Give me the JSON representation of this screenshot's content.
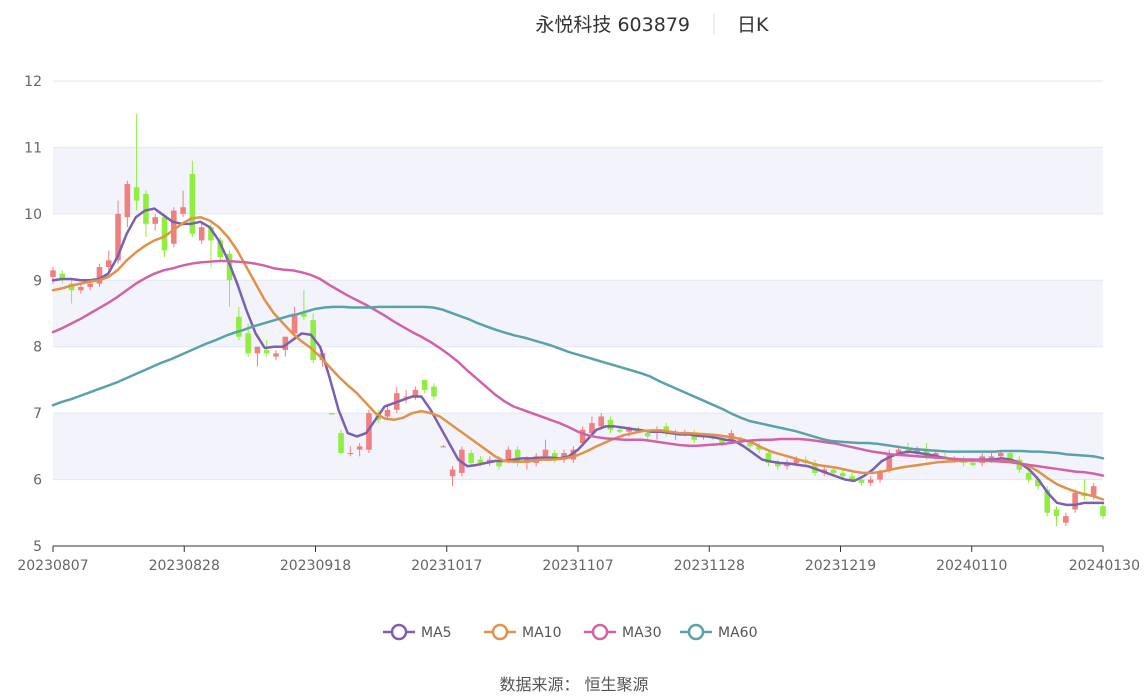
{
  "chart_data": {
    "type": "candlestick",
    "title": "永悦科技 603879",
    "subtitle": "日K",
    "source": "数据来源： 恒生聚源",
    "ylim": [
      5,
      12
    ],
    "yticks": [
      5,
      6,
      7,
      8,
      9,
      10,
      11,
      12
    ],
    "grid": true,
    "legend_position": "bottom",
    "xtick_labels": [
      "20230807",
      "20230828",
      "20230918",
      "20231017",
      "20231107",
      "20231128",
      "20231219",
      "20240110",
      "20240130"
    ],
    "up_color": "#f08080",
    "down_color": "#90ee40",
    "candles": [
      {
        "o": 9.05,
        "h": 9.2,
        "l": 8.95,
        "c": 9.15
      },
      {
        "o": 9.1,
        "h": 9.15,
        "l": 8.95,
        "c": 9.0
      },
      {
        "o": 8.95,
        "h": 9.0,
        "l": 8.65,
        "c": 8.85
      },
      {
        "o": 8.85,
        "h": 8.95,
        "l": 8.8,
        "c": 8.9
      },
      {
        "o": 8.9,
        "h": 9.0,
        "l": 8.85,
        "c": 8.95
      },
      {
        "o": 8.95,
        "h": 9.25,
        "l": 8.9,
        "c": 9.2
      },
      {
        "o": 9.2,
        "h": 9.45,
        "l": 9.15,
        "c": 9.3
      },
      {
        "o": 9.3,
        "h": 10.2,
        "l": 9.25,
        "c": 10.0
      },
      {
        "o": 9.95,
        "h": 10.5,
        "l": 9.8,
        "c": 10.45
      },
      {
        "o": 10.4,
        "h": 11.5,
        "l": 10.05,
        "c": 10.2
      },
      {
        "o": 10.3,
        "h": 10.35,
        "l": 9.65,
        "c": 9.85
      },
      {
        "o": 9.85,
        "h": 10.0,
        "l": 9.75,
        "c": 9.95
      },
      {
        "o": 9.95,
        "h": 10.0,
        "l": 9.35,
        "c": 9.45
      },
      {
        "o": 9.55,
        "h": 10.1,
        "l": 9.5,
        "c": 10.05
      },
      {
        "o": 10.0,
        "h": 10.35,
        "l": 9.95,
        "c": 10.1
      },
      {
        "o": 10.6,
        "h": 10.8,
        "l": 9.65,
        "c": 9.7
      },
      {
        "o": 9.6,
        "h": 9.85,
        "l": 9.55,
        "c": 9.8
      },
      {
        "o": 9.8,
        "h": 9.85,
        "l": 9.2,
        "c": 9.6
      },
      {
        "o": 9.6,
        "h": 9.65,
        "l": 9.3,
        "c": 9.35
      },
      {
        "o": 9.4,
        "h": 9.45,
        "l": 8.6,
        "c": 9.0
      },
      {
        "o": 8.45,
        "h": 8.6,
        "l": 8.1,
        "c": 8.15
      },
      {
        "o": 8.2,
        "h": 8.35,
        "l": 7.85,
        "c": 7.9
      },
      {
        "o": 7.9,
        "h": 8.0,
        "l": 7.7,
        "c": 8.0
      },
      {
        "o": 7.95,
        "h": 8.1,
        "l": 7.85,
        "c": 7.9
      },
      {
        "o": 7.85,
        "h": 7.95,
        "l": 7.8,
        "c": 7.9
      },
      {
        "o": 7.95,
        "h": 8.15,
        "l": 7.85,
        "c": 8.15
      },
      {
        "o": 8.2,
        "h": 8.6,
        "l": 8.15,
        "c": 8.5
      },
      {
        "o": 8.5,
        "h": 8.85,
        "l": 8.4,
        "c": 8.45
      },
      {
        "o": 8.4,
        "h": 8.5,
        "l": 7.75,
        "c": 7.8
      },
      {
        "o": 7.8,
        "h": 7.95,
        "l": 7.7,
        "c": 7.9
      },
      {
        "o": 7.0,
        "h": 7.0,
        "l": 6.98,
        "c": 6.98
      },
      {
        "o": 6.7,
        "h": 6.75,
        "l": 6.38,
        "c": 6.4
      },
      {
        "o": 6.4,
        "h": 6.5,
        "l": 6.35,
        "c": 6.4
      },
      {
        "o": 6.45,
        "h": 6.55,
        "l": 6.35,
        "c": 6.5
      },
      {
        "o": 6.45,
        "h": 7.05,
        "l": 6.4,
        "c": 7.0
      },
      {
        "o": 7.0,
        "h": 7.05,
        "l": 6.85,
        "c": 6.9
      },
      {
        "o": 6.95,
        "h": 7.1,
        "l": 6.9,
        "c": 7.05
      },
      {
        "o": 7.05,
        "h": 7.4,
        "l": 7.0,
        "c": 7.3
      },
      {
        "o": 7.25,
        "h": 7.35,
        "l": 7.15,
        "c": 7.25
      },
      {
        "o": 7.25,
        "h": 7.4,
        "l": 7.2,
        "c": 7.35
      },
      {
        "o": 7.5,
        "h": 7.5,
        "l": 7.3,
        "c": 7.35
      },
      {
        "o": 7.4,
        "h": 7.45,
        "l": 7.2,
        "c": 7.25
      },
      {
        "o": 6.5,
        "h": 6.52,
        "l": 6.48,
        "c": 6.5
      },
      {
        "o": 6.05,
        "h": 6.2,
        "l": 5.9,
        "c": 6.15
      },
      {
        "o": 6.1,
        "h": 6.5,
        "l": 6.05,
        "c": 6.45
      },
      {
        "o": 6.4,
        "h": 6.45,
        "l": 6.2,
        "c": 6.25
      },
      {
        "o": 6.3,
        "h": 6.35,
        "l": 6.2,
        "c": 6.25
      },
      {
        "o": 6.25,
        "h": 6.35,
        "l": 6.2,
        "c": 6.3
      },
      {
        "o": 6.3,
        "h": 6.35,
        "l": 6.15,
        "c": 6.2
      },
      {
        "o": 6.3,
        "h": 6.5,
        "l": 6.25,
        "c": 6.45
      },
      {
        "o": 6.45,
        "h": 6.5,
        "l": 6.2,
        "c": 6.25
      },
      {
        "o": 6.25,
        "h": 6.35,
        "l": 6.15,
        "c": 6.3
      },
      {
        "o": 6.25,
        "h": 6.4,
        "l": 6.2,
        "c": 6.35
      },
      {
        "o": 6.35,
        "h": 6.6,
        "l": 6.3,
        "c": 6.45
      },
      {
        "o": 6.4,
        "h": 6.45,
        "l": 6.25,
        "c": 6.3
      },
      {
        "o": 6.3,
        "h": 6.45,
        "l": 6.25,
        "c": 6.4
      },
      {
        "o": 6.3,
        "h": 6.5,
        "l": 6.25,
        "c": 6.45
      },
      {
        "o": 6.55,
        "h": 6.8,
        "l": 6.5,
        "c": 6.75
      },
      {
        "o": 6.7,
        "h": 6.95,
        "l": 6.65,
        "c": 6.85
      },
      {
        "o": 6.8,
        "h": 7.0,
        "l": 6.75,
        "c": 6.95
      },
      {
        "o": 6.9,
        "h": 6.95,
        "l": 6.7,
        "c": 6.75
      },
      {
        "o": 6.75,
        "h": 6.8,
        "l": 6.7,
        "c": 6.72
      },
      {
        "o": 6.72,
        "h": 6.8,
        "l": 6.65,
        "c": 6.78
      },
      {
        "o": 6.75,
        "h": 6.8,
        "l": 6.7,
        "c": 6.72
      },
      {
        "o": 6.7,
        "h": 6.75,
        "l": 6.6,
        "c": 6.65
      },
      {
        "o": 6.7,
        "h": 6.8,
        "l": 6.6,
        "c": 6.75
      },
      {
        "o": 6.8,
        "h": 6.85,
        "l": 6.65,
        "c": 6.7
      },
      {
        "o": 6.7,
        "h": 6.75,
        "l": 6.6,
        "c": 6.72
      },
      {
        "o": 6.7,
        "h": 6.75,
        "l": 6.65,
        "c": 6.7
      },
      {
        "o": 6.7,
        "h": 6.75,
        "l": 6.55,
        "c": 6.6
      },
      {
        "o": 6.65,
        "h": 6.7,
        "l": 6.6,
        "c": 6.68
      },
      {
        "o": 6.65,
        "h": 6.7,
        "l": 6.6,
        "c": 6.62
      },
      {
        "o": 6.6,
        "h": 6.65,
        "l": 6.5,
        "c": 6.55
      },
      {
        "o": 6.6,
        "h": 6.75,
        "l": 6.55,
        "c": 6.7
      },
      {
        "o": 6.6,
        "h": 6.65,
        "l": 6.5,
        "c": 6.55
      },
      {
        "o": 6.55,
        "h": 6.6,
        "l": 6.45,
        "c": 6.5
      },
      {
        "o": 6.5,
        "h": 6.55,
        "l": 6.4,
        "c": 6.45
      },
      {
        "o": 6.4,
        "h": 6.45,
        "l": 6.2,
        "c": 6.25
      },
      {
        "o": 6.25,
        "h": 6.3,
        "l": 6.15,
        "c": 6.2
      },
      {
        "o": 6.2,
        "h": 6.3,
        "l": 6.15,
        "c": 6.25
      },
      {
        "o": 6.25,
        "h": 6.35,
        "l": 6.2,
        "c": 6.3
      },
      {
        "o": 6.3,
        "h": 6.35,
        "l": 6.2,
        "c": 6.25
      },
      {
        "o": 6.25,
        "h": 6.3,
        "l": 6.05,
        "c": 6.1
      },
      {
        "o": 6.1,
        "h": 6.2,
        "l": 6.05,
        "c": 6.15
      },
      {
        "o": 6.15,
        "h": 6.2,
        "l": 6.05,
        "c": 6.1
      },
      {
        "o": 6.1,
        "h": 6.15,
        "l": 6.0,
        "c": 6.05
      },
      {
        "o": 6.05,
        "h": 6.1,
        "l": 5.95,
        "c": 6.0
      },
      {
        "o": 6.0,
        "h": 6.05,
        "l": 5.9,
        "c": 5.95
      },
      {
        "o": 5.95,
        "h": 6.05,
        "l": 5.9,
        "c": 6.0
      },
      {
        "o": 6.0,
        "h": 6.15,
        "l": 5.95,
        "c": 6.1
      },
      {
        "o": 6.15,
        "h": 6.45,
        "l": 6.1,
        "c": 6.4
      },
      {
        "o": 6.4,
        "h": 6.5,
        "l": 6.35,
        "c": 6.45
      },
      {
        "o": 6.45,
        "h": 6.55,
        "l": 6.35,
        "c": 6.4
      },
      {
        "o": 6.4,
        "h": 6.5,
        "l": 6.35,
        "c": 6.45
      },
      {
        "o": 6.45,
        "h": 6.55,
        "l": 6.3,
        "c": 6.35
      },
      {
        "o": 6.35,
        "h": 6.45,
        "l": 6.3,
        "c": 6.4
      },
      {
        "o": 6.35,
        "h": 6.4,
        "l": 6.3,
        "c": 6.32
      },
      {
        "o": 6.3,
        "h": 6.35,
        "l": 6.25,
        "c": 6.3
      },
      {
        "o": 6.28,
        "h": 6.35,
        "l": 6.2,
        "c": 6.25
      },
      {
        "o": 6.25,
        "h": 6.3,
        "l": 6.2,
        "c": 6.22
      },
      {
        "o": 6.25,
        "h": 6.4,
        "l": 6.2,
        "c": 6.35
      },
      {
        "o": 6.3,
        "h": 6.4,
        "l": 6.25,
        "c": 6.35
      },
      {
        "o": 6.35,
        "h": 6.45,
        "l": 6.3,
        "c": 6.4
      },
      {
        "o": 6.4,
        "h": 6.45,
        "l": 6.25,
        "c": 6.3
      },
      {
        "o": 6.3,
        "h": 6.35,
        "l": 6.1,
        "c": 6.15
      },
      {
        "o": 6.1,
        "h": 6.15,
        "l": 5.95,
        "c": 6.0
      },
      {
        "o": 6.0,
        "h": 6.05,
        "l": 5.85,
        "c": 5.9
      },
      {
        "o": 5.85,
        "h": 5.9,
        "l": 5.45,
        "c": 5.5
      },
      {
        "o": 5.55,
        "h": 5.6,
        "l": 5.3,
        "c": 5.45
      },
      {
        "o": 5.35,
        "h": 5.5,
        "l": 5.3,
        "c": 5.45
      },
      {
        "o": 5.55,
        "h": 5.85,
        "l": 5.5,
        "c": 5.8
      },
      {
        "o": 5.8,
        "h": 6.0,
        "l": 5.7,
        "c": 5.75
      },
      {
        "o": 5.75,
        "h": 5.95,
        "l": 5.7,
        "c": 5.9
      },
      {
        "o": 5.6,
        "h": 5.65,
        "l": 5.4,
        "c": 5.45
      }
    ],
    "series": [
      {
        "name": "MA5",
        "color": "#7b5fb0",
        "values": [
          9.0,
          9.02,
          9.02,
          9.0,
          9.0,
          9.02,
          9.1,
          9.35,
          9.7,
          9.95,
          10.05,
          10.08,
          9.98,
          9.88,
          9.85,
          9.85,
          9.88,
          9.8,
          9.6,
          9.3,
          8.95,
          8.55,
          8.2,
          7.98,
          8.0,
          8.0,
          8.1,
          8.2,
          8.18,
          8.0,
          7.55,
          7.05,
          6.7,
          6.65,
          6.7,
          6.9,
          7.1,
          7.15,
          7.2,
          7.25,
          7.25,
          7.05,
          6.8,
          6.55,
          6.3,
          6.2,
          6.22,
          6.25,
          6.28,
          6.28,
          6.3,
          6.32,
          6.32,
          6.33,
          6.33,
          6.32,
          6.35,
          6.45,
          6.6,
          6.75,
          6.8,
          6.8,
          6.78,
          6.76,
          6.74,
          6.72,
          6.72,
          6.7,
          6.68,
          6.68,
          6.66,
          6.65,
          6.63,
          6.6,
          6.58,
          6.5,
          6.4,
          6.3,
          6.27,
          6.25,
          6.24,
          6.22,
          6.2,
          6.15,
          6.1,
          6.05,
          6.0,
          5.98,
          6.05,
          6.15,
          6.28,
          6.35,
          6.4,
          6.42,
          6.4,
          6.38,
          6.35,
          6.32,
          6.3,
          6.3,
          6.3,
          6.3,
          6.3,
          6.32,
          6.3,
          6.25,
          6.15,
          6.0,
          5.8,
          5.65,
          5.62,
          5.62,
          5.65,
          5.65,
          5.65
        ]
      },
      {
        "name": "MA10",
        "color": "#e0924a",
        "values": [
          8.85,
          8.88,
          8.92,
          8.95,
          8.98,
          9.0,
          9.05,
          9.15,
          9.3,
          9.42,
          9.52,
          9.6,
          9.65,
          9.75,
          9.85,
          9.93,
          9.95,
          9.9,
          9.8,
          9.65,
          9.45,
          9.2,
          8.95,
          8.7,
          8.5,
          8.35,
          8.2,
          8.08,
          7.98,
          7.85,
          7.7,
          7.55,
          7.42,
          7.3,
          7.15,
          7.0,
          6.92,
          6.9,
          6.93,
          7.0,
          7.03,
          7.0,
          6.95,
          6.85,
          6.75,
          6.65,
          6.55,
          6.45,
          6.35,
          6.28,
          6.27,
          6.27,
          6.28,
          6.3,
          6.3,
          6.31,
          6.33,
          6.37,
          6.43,
          6.5,
          6.56,
          6.62,
          6.67,
          6.7,
          6.73,
          6.74,
          6.74,
          6.72,
          6.7,
          6.7,
          6.69,
          6.68,
          6.67,
          6.65,
          6.63,
          6.6,
          6.55,
          6.48,
          6.42,
          6.38,
          6.34,
          6.3,
          6.26,
          6.22,
          6.2,
          6.18,
          6.15,
          6.12,
          6.1,
          6.1,
          6.12,
          6.15,
          6.18,
          6.2,
          6.22,
          6.24,
          6.26,
          6.27,
          6.28,
          6.28,
          6.28,
          6.28,
          6.28,
          6.28,
          6.27,
          6.25,
          6.2,
          6.12,
          6.02,
          5.93,
          5.87,
          5.82,
          5.78,
          5.75,
          5.7
        ]
      },
      {
        "name": "MA30",
        "color": "#d162a8",
        "values": [
          8.22,
          8.28,
          8.35,
          8.42,
          8.5,
          8.58,
          8.66,
          8.75,
          8.85,
          8.95,
          9.03,
          9.1,
          9.15,
          9.18,
          9.22,
          9.25,
          9.27,
          9.28,
          9.29,
          9.29,
          9.28,
          9.27,
          9.25,
          9.22,
          9.18,
          9.16,
          9.15,
          9.12,
          9.08,
          9.02,
          8.93,
          8.85,
          8.77,
          8.7,
          8.63,
          8.55,
          8.47,
          8.38,
          8.3,
          8.22,
          8.15,
          8.07,
          7.98,
          7.88,
          7.77,
          7.64,
          7.52,
          7.4,
          7.28,
          7.18,
          7.1,
          7.05,
          7.0,
          6.95,
          6.9,
          6.85,
          6.79,
          6.72,
          6.67,
          6.64,
          6.62,
          6.61,
          6.6,
          6.6,
          6.6,
          6.58,
          6.56,
          6.54,
          6.52,
          6.51,
          6.51,
          6.52,
          6.53,
          6.54,
          6.56,
          6.58,
          6.59,
          6.6,
          6.6,
          6.61,
          6.61,
          6.61,
          6.6,
          6.58,
          6.56,
          6.54,
          6.51,
          6.48,
          6.45,
          6.42,
          6.4,
          6.38,
          6.37,
          6.36,
          6.35,
          6.34,
          6.33,
          6.32,
          6.31,
          6.3,
          6.3,
          6.29,
          6.28,
          6.27,
          6.26,
          6.24,
          6.22,
          6.2,
          6.18,
          6.16,
          6.14,
          6.12,
          6.11,
          6.09,
          6.06
        ]
      },
      {
        "name": "MA60",
        "color": "#5aa2a8",
        "values": [
          7.12,
          7.17,
          7.21,
          7.26,
          7.31,
          7.36,
          7.41,
          7.46,
          7.52,
          7.58,
          7.64,
          7.7,
          7.76,
          7.81,
          7.87,
          7.93,
          7.99,
          8.05,
          8.1,
          8.16,
          8.21,
          8.25,
          8.3,
          8.34,
          8.38,
          8.42,
          8.46,
          8.49,
          8.53,
          8.57,
          8.59,
          8.6,
          8.6,
          8.59,
          8.59,
          8.59,
          8.6,
          8.6,
          8.6,
          8.6,
          8.6,
          8.6,
          8.59,
          8.56,
          8.51,
          8.46,
          8.41,
          8.35,
          8.3,
          8.25,
          8.21,
          8.17,
          8.14,
          8.1,
          8.06,
          8.02,
          7.97,
          7.92,
          7.88,
          7.84,
          7.8,
          7.76,
          7.72,
          7.68,
          7.64,
          7.6,
          7.55,
          7.48,
          7.42,
          7.36,
          7.3,
          7.24,
          7.18,
          7.12,
          7.06,
          6.99,
          6.93,
          6.88,
          6.85,
          6.82,
          6.79,
          6.76,
          6.73,
          6.69,
          6.65,
          6.61,
          6.58,
          6.57,
          6.56,
          6.55,
          6.55,
          6.54,
          6.52,
          6.5,
          6.48,
          6.46,
          6.45,
          6.44,
          6.43,
          6.42,
          6.42,
          6.42,
          6.42,
          6.42,
          6.42,
          6.43,
          6.43,
          6.43,
          6.42,
          6.42,
          6.41,
          6.4,
          6.38,
          6.37,
          6.36,
          6.35,
          6.32
        ]
      }
    ]
  }
}
